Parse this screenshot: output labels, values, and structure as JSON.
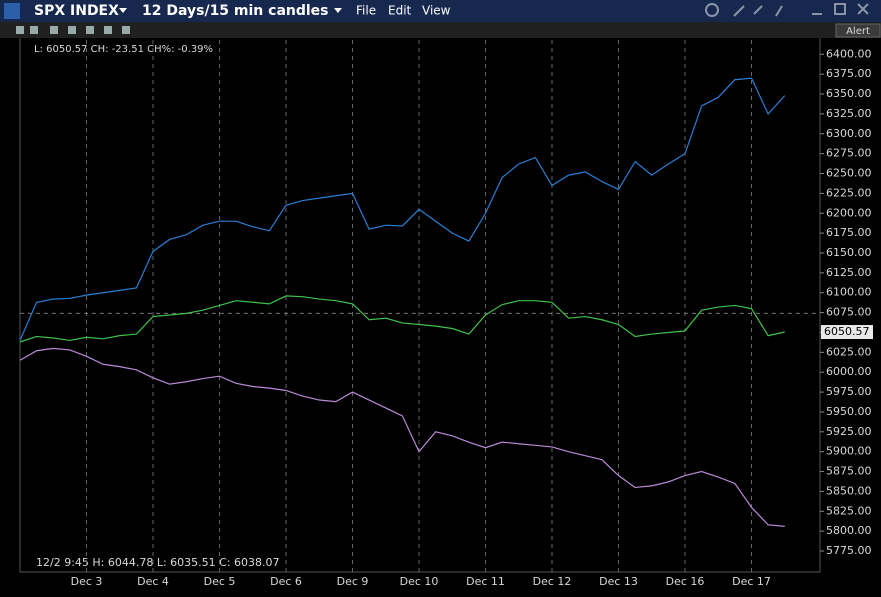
{
  "header": {
    "symbol": "SPX INDEX",
    "period": "12 Days/15 min candles",
    "menu": [
      "File",
      "Edit",
      "View"
    ],
    "alert": "Alert"
  },
  "info_top": "L: 6050.57 CH: -23.51 CH%: -0.39%",
  "info_bottom": "12/2 9:45   H: 6044.78   L: 6035.51   C: 6038.07",
  "chart_data": {
    "type": "line",
    "x": [
      0,
      0.25,
      0.5,
      0.75,
      1,
      1.25,
      1.5,
      1.75,
      2,
      2.25,
      2.5,
      2.75,
      3,
      3.25,
      3.5,
      3.75,
      4,
      4.25,
      4.5,
      4.75,
      5,
      5.25,
      5.5,
      5.75,
      6,
      6.25,
      6.5,
      6.75,
      7,
      7.25,
      7.5,
      7.75,
      8,
      8.25,
      8.5,
      8.75,
      9,
      9.25,
      9.5,
      9.75,
      10,
      10.25,
      10.5,
      10.75,
      11,
      11.25,
      11.5
    ],
    "series": [
      {
        "color": "#2a7fd4",
        "values": [
          6040,
          6088,
          6092,
          6093,
          6097,
          6100,
          6103,
          6106,
          6152,
          6167,
          6173,
          6185,
          6190,
          6190,
          6183,
          6178,
          6210,
          6216,
          6219,
          6222,
          6225,
          6180,
          6185,
          6184,
          6205,
          6190,
          6175,
          6165,
          6200,
          6245,
          6262,
          6270,
          6235,
          6248,
          6252,
          6240,
          6230,
          6265,
          6248,
          6262,
          6275,
          6335,
          6346,
          6368,
          6370,
          6325,
          6348
        ]
      },
      {
        "color": "#3ec24a",
        "values": [
          6038,
          6045,
          6043,
          6040,
          6044,
          6042,
          6046,
          6048,
          6070,
          6072,
          6074,
          6078,
          6084,
          6090,
          6088,
          6086,
          6096,
          6095,
          6092,
          6090,
          6086,
          6066,
          6068,
          6062,
          6060,
          6058,
          6055,
          6048,
          6072,
          6085,
          6090,
          6090,
          6088,
          6068,
          6070,
          6066,
          6060,
          6045,
          6048,
          6050,
          6052,
          6078,
          6082,
          6084,
          6080,
          6046,
          6050.57
        ]
      },
      {
        "color": "#b98ad8",
        "values": [
          6015,
          6027,
          6030,
          6028,
          6020,
          6010,
          6007,
          6003,
          5993,
          5985,
          5988,
          5992,
          5995,
          5986,
          5982,
          5980,
          5977,
          5970,
          5965,
          5963,
          5975,
          5965,
          5955,
          5945,
          5900,
          5925,
          5920,
          5912,
          5905,
          5912,
          5910,
          5908,
          5906,
          5900,
          5895,
          5890,
          5870,
          5855,
          5857,
          5862,
          5870,
          5875,
          5868,
          5860,
          5830,
          5808,
          5806
        ]
      }
    ],
    "hline": 6074,
    "xlim": [
      0,
      12
    ],
    "xticks": [
      {
        "value": 1,
        "label": "Dec 3"
      },
      {
        "value": 2,
        "label": "Dec 4"
      },
      {
        "value": 3,
        "label": "Dec 5"
      },
      {
        "value": 4,
        "label": "Dec 6"
      },
      {
        "value": 5,
        "label": "Dec 9"
      },
      {
        "value": 6,
        "label": "Dec 10"
      },
      {
        "value": 7,
        "label": "Dec 11"
      },
      {
        "value": 8,
        "label": "Dec 12"
      },
      {
        "value": 9,
        "label": "Dec 13"
      },
      {
        "value": 10,
        "label": "Dec 16"
      },
      {
        "value": 11,
        "label": "Dec 17"
      }
    ],
    "ylim": [
      5770,
      6418
    ],
    "yticks": [
      {
        "value": 5775,
        "label": "5775.00"
      },
      {
        "value": 5800,
        "label": "5800.00"
      },
      {
        "value": 5825,
        "label": "5825.00"
      },
      {
        "value": 5850,
        "label": "5850.00"
      },
      {
        "value": 5875,
        "label": "5875.00"
      },
      {
        "value": 5900,
        "label": "5900.00"
      },
      {
        "value": 5925,
        "label": "5925.00"
      },
      {
        "value": 5950,
        "label": "5950.00"
      },
      {
        "value": 5975,
        "label": "5975.00"
      },
      {
        "value": 6000,
        "label": "6000.00"
      },
      {
        "value": 6025,
        "label": "6025.00"
      },
      {
        "value": 6050,
        "label": "6050.00"
      },
      {
        "value": 6075,
        "label": "6075.00"
      },
      {
        "value": 6100,
        "label": "6100.00"
      },
      {
        "value": 6125,
        "label": "6125.00"
      },
      {
        "value": 6150,
        "label": "6150.00"
      },
      {
        "value": 6175,
        "label": "6175.00"
      },
      {
        "value": 6200,
        "label": "6200.00"
      },
      {
        "value": 6225,
        "label": "6225.00"
      },
      {
        "value": 6250,
        "label": "6250.00"
      },
      {
        "value": 6275,
        "label": "6275.00"
      },
      {
        "value": 6300,
        "label": "6300.00"
      },
      {
        "value": 6325,
        "label": "6325.00"
      },
      {
        "value": 6350,
        "label": "6350.00"
      },
      {
        "value": 6375,
        "label": "6375.00"
      },
      {
        "value": 6400,
        "label": "6400.00"
      }
    ],
    "grid": true
  }
}
